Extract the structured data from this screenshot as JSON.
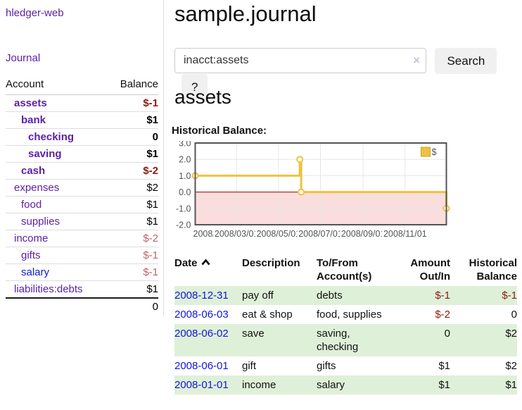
{
  "sidebar": {
    "brand": "hledger-web",
    "nav_journal": "Journal",
    "accounts_table": {
      "headers": {
        "account": "Account",
        "balance": "Balance"
      },
      "rows": [
        {
          "name": "assets",
          "balance": "$-1"
        },
        {
          "name": "bank",
          "balance": "$1"
        },
        {
          "name": "checking",
          "balance": "0"
        },
        {
          "name": "saving",
          "balance": "$1"
        },
        {
          "name": "cash",
          "balance": "$-2"
        },
        {
          "name": "expenses",
          "balance": "$2"
        },
        {
          "name": "food",
          "balance": "$1"
        },
        {
          "name": "supplies",
          "balance": "$1"
        },
        {
          "name": "income",
          "balance": "$-2"
        },
        {
          "name": "gifts",
          "balance": "$-1"
        },
        {
          "name": "salary",
          "balance": "$-1"
        },
        {
          "name": "liabilities:debts",
          "balance": "$1"
        }
      ],
      "total": "0"
    }
  },
  "header": {
    "title": "sample.journal"
  },
  "search": {
    "value": "inacct:assets",
    "clear_icon": "×",
    "button": "Search",
    "help_button": "?"
  },
  "section": {
    "heading": "assets",
    "chart_label": "Historical Balance:"
  },
  "chart_data": {
    "type": "line",
    "title": "Historical Balance",
    "step": true,
    "series": [
      {
        "name": "$",
        "points": [
          [
            "2008-01-01",
            1
          ],
          [
            "2008-06-01",
            2
          ],
          [
            "2008-06-02",
            2
          ],
          [
            "2008-06-03",
            0
          ],
          [
            "2008-12-31",
            -1
          ]
        ]
      }
    ],
    "x_range": [
      "2008-01-01",
      "2008-12-31"
    ],
    "ylim": [
      -2,
      3
    ],
    "yticks": [
      3.0,
      2.0,
      1.0,
      0.0,
      -1.0,
      -2.0
    ],
    "xticks": [
      "2008/01/01",
      "2008/03/01",
      "2008/05/01",
      "2008/07/01",
      "2008/09/01",
      "2008/11/01"
    ],
    "grid": true,
    "legend_position": "top-right",
    "colors": {
      "series": "#edc240",
      "series_border": "#c9a42f",
      "negative_region": "#fadddd",
      "zero_line": "#990000",
      "border": "#545454",
      "grid": "#e6e6e6",
      "tick_text": "#545454"
    }
  },
  "register": {
    "headers": {
      "date": "Date",
      "description": "Description",
      "accounts": "To/From Account(s)",
      "amount": "Amount Out/In",
      "balance": "Historical Balance"
    },
    "rows": [
      {
        "date": "2008-12-31",
        "description": "pay off",
        "accounts": "debts",
        "amount": "$-1",
        "balance": "$-1"
      },
      {
        "date": "2008-06-03",
        "description": "eat & shop",
        "accounts": "food, supplies",
        "amount": "$-2",
        "balance": "0"
      },
      {
        "date": "2008-06-02",
        "description": "save",
        "accounts": "saving, checking",
        "amount": "0",
        "balance": "$2"
      },
      {
        "date": "2008-06-01",
        "description": "gift",
        "accounts": "gifts",
        "amount": "$1",
        "balance": "$2"
      },
      {
        "date": "2008-01-01",
        "description": "income",
        "accounts": "salary",
        "amount": "$1",
        "balance": "$1"
      }
    ]
  }
}
